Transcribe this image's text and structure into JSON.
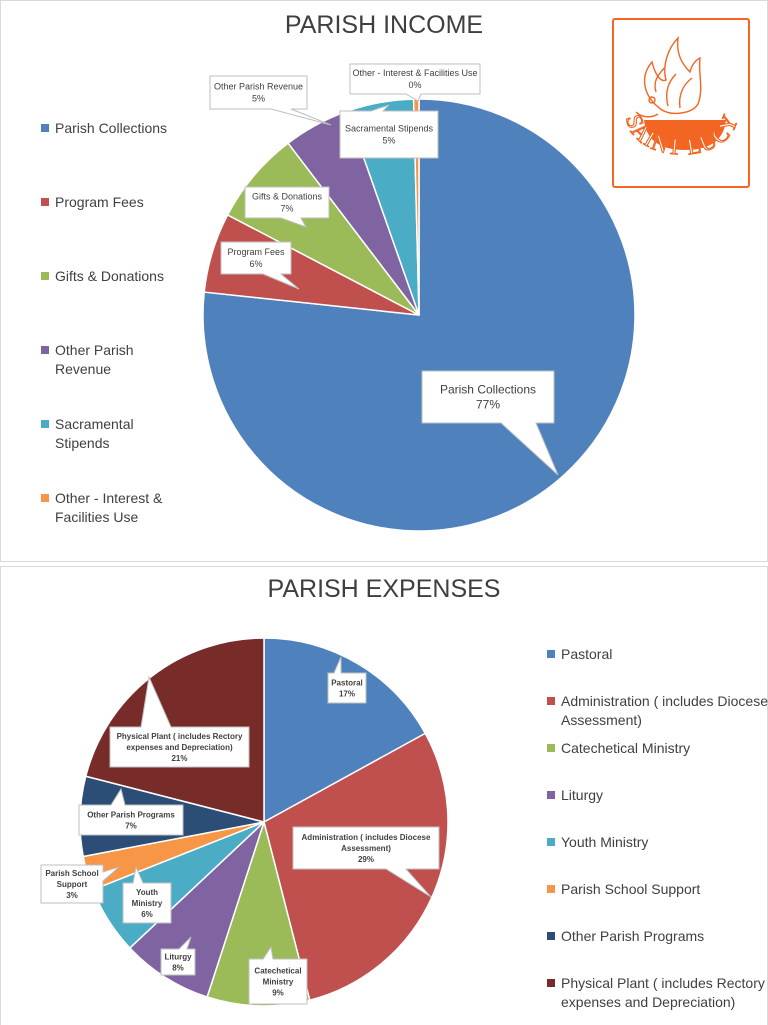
{
  "colors": {
    "blue": "#4f81bd",
    "red": "#c0504d",
    "green": "#9bbb59",
    "purple": "#8064a2",
    "aqua": "#4bacc6",
    "orange": "#f79646",
    "navy": "#2c4d75",
    "maroon": "#772c2a",
    "logo": "#f26522"
  },
  "logo": {
    "text": "SAINT LUCY"
  },
  "chart_data": [
    {
      "type": "pie",
      "title": "PARISH INCOME",
      "legend_position": "left",
      "categories": [
        "Parish Collections",
        "Program Fees",
        "Gifts  & Donations",
        "Other Parish Revenue",
        "Sacramental Stipends",
        "Other - Interest & Facilities Use"
      ],
      "values": [
        77,
        6,
        7,
        5,
        5,
        0.4
      ],
      "data_labels": [
        "77%",
        "6%",
        "7%",
        "5%",
        "5%",
        "0%"
      ],
      "legend_lines": [
        [
          "Parish Collections"
        ],
        [
          "Program Fees"
        ],
        [
          "Gifts  & Donations"
        ],
        [
          "Other Parish",
          "Revenue"
        ],
        [
          "Sacramental",
          "Stipends"
        ],
        [
          "Other - Interest &",
          "Facilities Use"
        ]
      ]
    },
    {
      "type": "pie",
      "title": "PARISH EXPENSES",
      "legend_position": "right",
      "categories": [
        "Pastoral",
        "Administration ( includes Diocese Assessment)",
        "Catechetical Ministry",
        "Liturgy",
        "Youth Ministry",
        "Parish School Support",
        "Other Parish Programs",
        "Physical Plant ( includes Rectory expenses and Depreciation)"
      ],
      "values": [
        17,
        29,
        9,
        8,
        6,
        3,
        7,
        21
      ],
      "data_labels": [
        "17%",
        "29%",
        "9%",
        "8%",
        "6%",
        "3%",
        "7%",
        "21%"
      ],
      "label_lines": [
        [
          "Pastoral"
        ],
        [
          "Administration ( includes Diocese",
          "Assessment)"
        ],
        [
          "Catechetical",
          "Ministry"
        ],
        [
          "Liturgy"
        ],
        [
          "Youth",
          "Ministry"
        ],
        [
          "Parish School",
          "Support"
        ],
        [
          "Other Parish Programs"
        ],
        [
          "Physical Plant ( includes Rectory",
          "expenses and Depreciation)"
        ]
      ],
      "legend_lines": [
        [
          "Pastoral"
        ],
        [
          "Administration ( includes Diocese",
          "Assessment)"
        ],
        [
          "Catechetical Ministry"
        ],
        [
          "Liturgy"
        ],
        [
          "Youth Ministry"
        ],
        [
          "Parish School Support"
        ],
        [
          "Other Parish Programs"
        ],
        [
          "Physical Plant ( includes Rectory",
          "expenses and Depreciation)"
        ]
      ]
    }
  ]
}
